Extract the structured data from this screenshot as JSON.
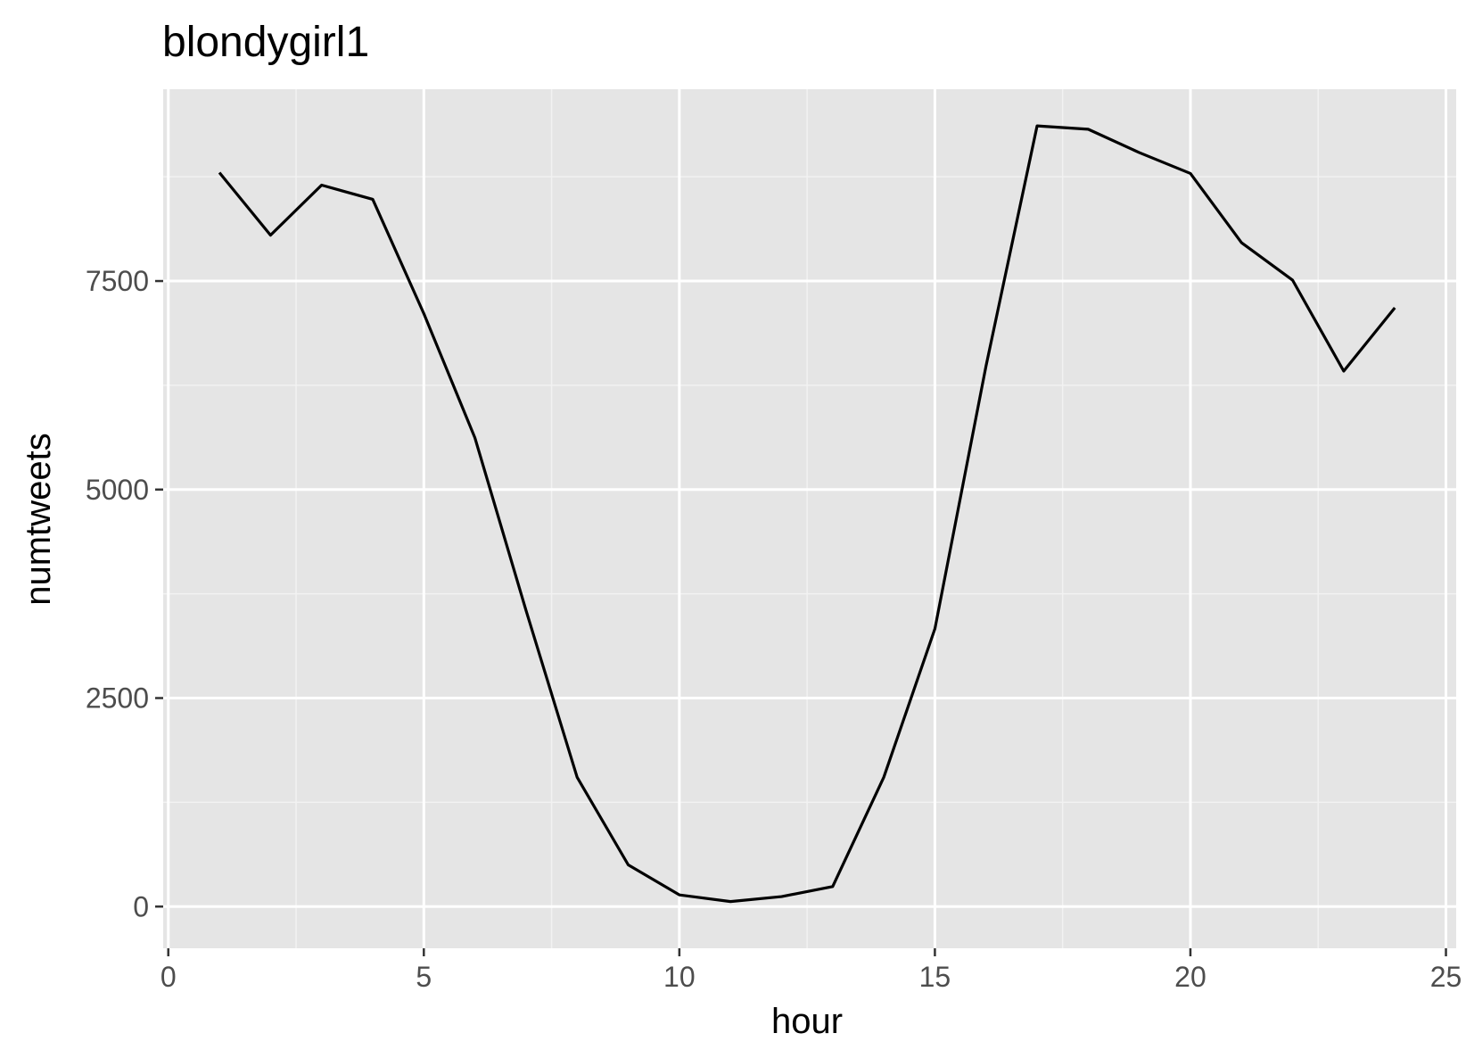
{
  "chart_data": {
    "type": "line",
    "title": "blondygirl1",
    "xlabel": "hour",
    "ylabel": "numtweets",
    "xlim": [
      -0.1,
      25.2
    ],
    "ylim": [
      -500,
      9800
    ],
    "x_ticks": [
      0,
      5,
      10,
      15,
      20,
      25
    ],
    "x_tick_labels": [
      "0",
      "5",
      "10",
      "15",
      "20",
      "25"
    ],
    "y_ticks": [
      0,
      2500,
      5000,
      7500
    ],
    "y_tick_labels": [
      "0",
      "2500",
      "5000",
      "7500"
    ],
    "grid": true,
    "legend": "none",
    "series": [
      {
        "x": [
          1,
          2,
          3,
          4,
          5,
          6,
          7,
          8,
          9,
          10,
          11,
          12,
          13,
          14,
          15,
          16,
          17,
          18,
          19,
          20,
          21,
          22,
          23,
          24
        ],
        "y": [
          8800,
          8050,
          8650,
          8480,
          7110,
          5620,
          3550,
          1550,
          500,
          140,
          60,
          120,
          240,
          1550,
          3330,
          6480,
          9360,
          9320,
          9040,
          8790,
          7960,
          7510,
          6420,
          7180
        ]
      }
    ]
  },
  "colors": {
    "panel_background": "#e5e5e5",
    "grid_major": "#ffffff",
    "grid_minor": "#f2f2f2",
    "line": "#000000",
    "tick_label": "#4d4d4d",
    "tick_mark": "#333333"
  }
}
